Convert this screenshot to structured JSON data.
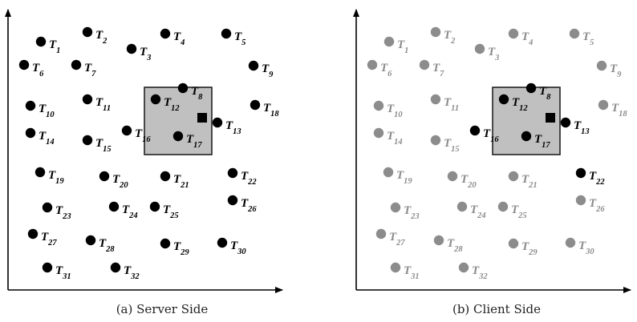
{
  "colors": {
    "active": "#000000",
    "inactive": "#8c8c8c",
    "query_fill": "#c0c0c0",
    "query_stroke": "#222222"
  },
  "panels": [
    {
      "id": "server",
      "caption": "(a) Server Side",
      "active": [
        "1",
        "2",
        "3",
        "4",
        "5",
        "6",
        "7",
        "8",
        "9",
        "10",
        "11",
        "12",
        "13",
        "14",
        "15",
        "16",
        "17",
        "18",
        "19",
        "20",
        "21",
        "22",
        "23",
        "24",
        "25",
        "26",
        "27",
        "28",
        "29",
        "30",
        "31",
        "32"
      ]
    },
    {
      "id": "client",
      "caption": "(b) Client Side",
      "active": [
        "8",
        "12",
        "13",
        "16",
        "17",
        "22"
      ]
    }
  ],
  "points": [
    {
      "id": "1"
    },
    {
      "id": "2"
    },
    {
      "id": "3"
    },
    {
      "id": "4"
    },
    {
      "id": "5"
    },
    {
      "id": "6"
    },
    {
      "id": "7"
    },
    {
      "id": "8"
    },
    {
      "id": "9"
    },
    {
      "id": "10"
    },
    {
      "id": "11"
    },
    {
      "id": "12"
    },
    {
      "id": "13"
    },
    {
      "id": "14"
    },
    {
      "id": "15"
    },
    {
      "id": "16"
    },
    {
      "id": "17"
    },
    {
      "id": "18"
    },
    {
      "id": "19"
    },
    {
      "id": "20"
    },
    {
      "id": "21"
    },
    {
      "id": "22"
    },
    {
      "id": "23"
    },
    {
      "id": "24"
    },
    {
      "id": "25"
    },
    {
      "id": "26"
    },
    {
      "id": "27"
    },
    {
      "id": "28"
    },
    {
      "id": "29"
    },
    {
      "id": "30"
    },
    {
      "id": "31"
    },
    {
      "id": "32"
    }
  ],
  "label_prefix": "T"
}
